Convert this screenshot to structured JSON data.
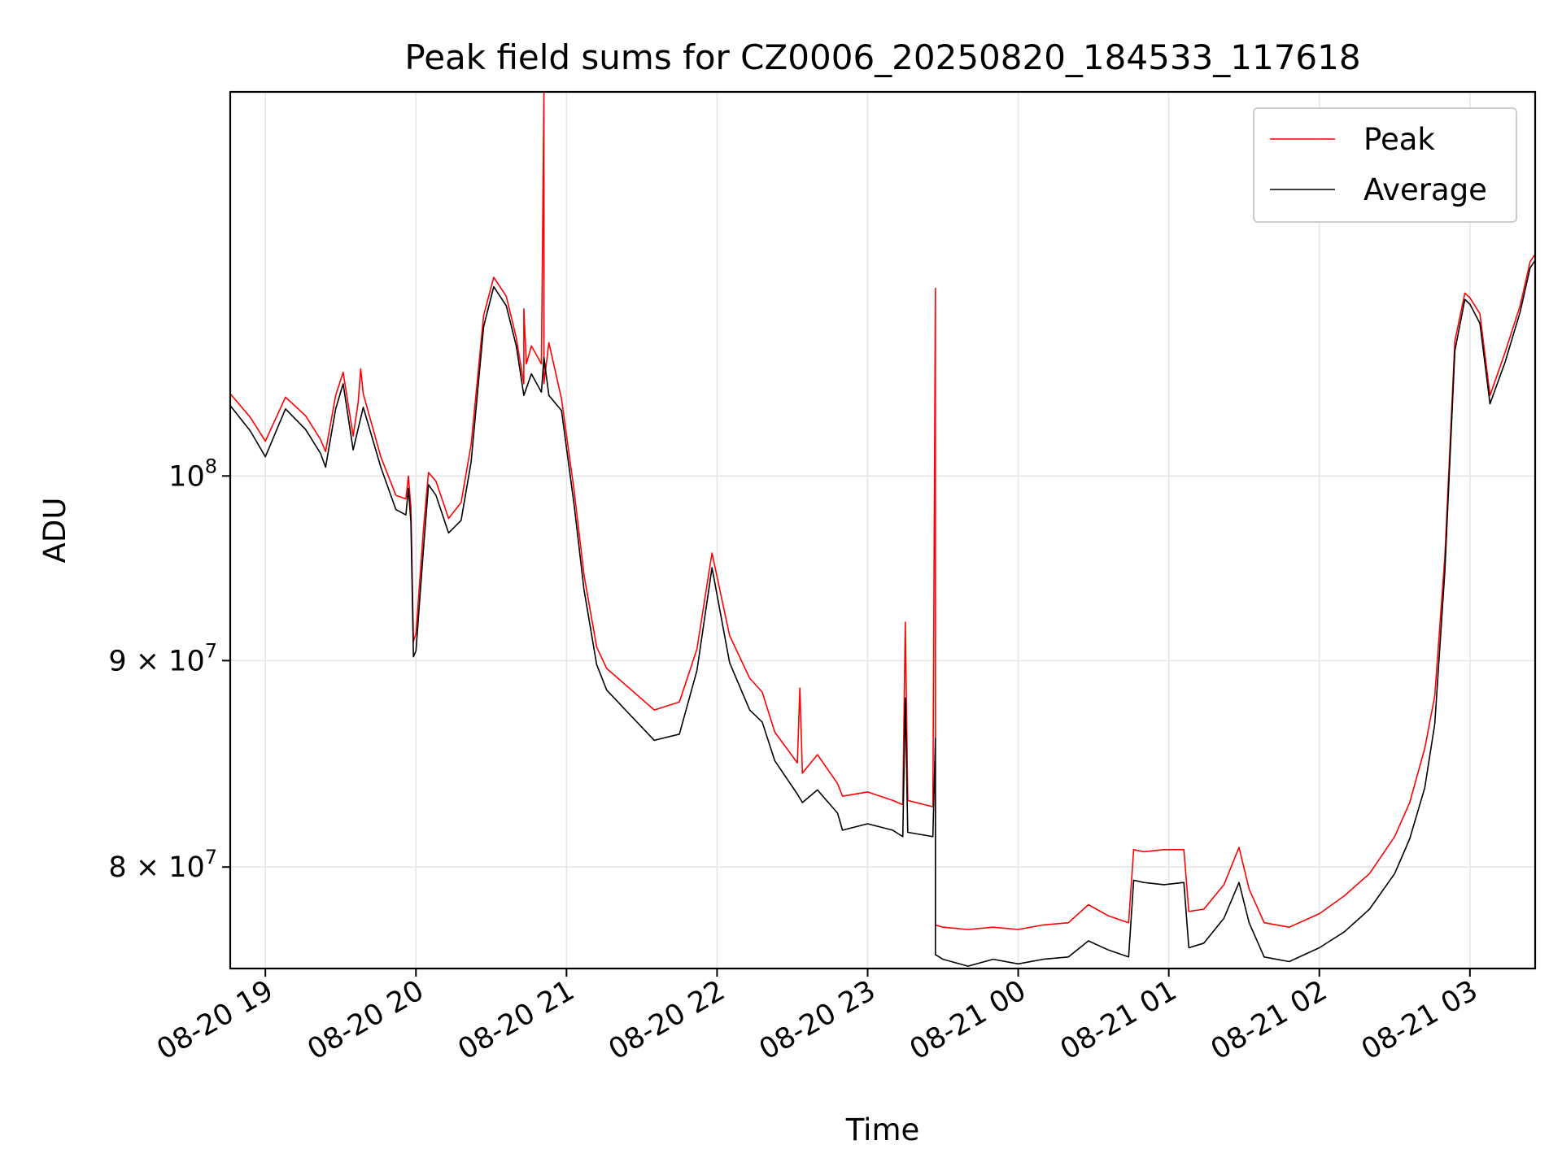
{
  "chart_data": {
    "type": "line",
    "title": "Peak field sums for CZ0006_20250820_184533_117618",
    "xlabel": "Time",
    "ylabel": "ADU",
    "y_scale": "log",
    "xlim": [
      "2025-08-20 18:46",
      "2025-08-21 03:26"
    ],
    "ylim": [
      75500000,
      124500000
    ],
    "grid": true,
    "legend_position": "top-right",
    "x_ticks": [
      {
        "value": "2025-08-20 19:00",
        "label": "08-20 19"
      },
      {
        "value": "2025-08-20 20:00",
        "label": "08-20 20"
      },
      {
        "value": "2025-08-20 21:00",
        "label": "08-20 21"
      },
      {
        "value": "2025-08-20 22:00",
        "label": "08-20 22"
      },
      {
        "value": "2025-08-20 23:00",
        "label": "08-20 23"
      },
      {
        "value": "2025-08-21 00:00",
        "label": "08-21 00"
      },
      {
        "value": "2025-08-21 01:00",
        "label": "08-21 01"
      },
      {
        "value": "2025-08-21 02:00",
        "label": "08-21 02"
      },
      {
        "value": "2025-08-21 03:00",
        "label": "08-21 03"
      }
    ],
    "y_ticks": [
      {
        "value": 80000000,
        "mantissa": "8 × 10",
        "exp": "7"
      },
      {
        "value": 90000000,
        "mantissa": "9 × 10",
        "exp": "7"
      },
      {
        "value": 100000000,
        "mantissa": "10",
        "exp": "8"
      }
    ],
    "series": [
      {
        "name": "Peak",
        "color": "#ff0000",
        "x": [
          "2025-08-20 18:46",
          "2025-08-20 18:54",
          "2025-08-20 19:00",
          "2025-08-20 19:08",
          "2025-08-20 19:16",
          "2025-08-20 19:22",
          "2025-08-20 19:24",
          "2025-08-20 19:28",
          "2025-08-20 19:31",
          "2025-08-20 19:35",
          "2025-08-20 19:37",
          "2025-08-20 19:38",
          "2025-08-20 19:39",
          "2025-08-20 19:46",
          "2025-08-20 19:52",
          "2025-08-20 19:56",
          "2025-08-20 19:57",
          "2025-08-20 19:58",
          "2025-08-20 19:59",
          "2025-08-20 20:00",
          "2025-08-20 20:03",
          "2025-08-20 20:05",
          "2025-08-20 20:08",
          "2025-08-20 20:13",
          "2025-08-20 20:18",
          "2025-08-20 20:22",
          "2025-08-20 20:27",
          "2025-08-20 20:31",
          "2025-08-20 20:36",
          "2025-08-20 20:40",
          "2025-08-20 20:43",
          "2025-08-20 20:43",
          "2025-08-20 20:44",
          "2025-08-20 20:46",
          "2025-08-20 20:50",
          "2025-08-20 20:51",
          "2025-08-20 20:51",
          "2025-08-20 20:53",
          "2025-08-20 20:58",
          "2025-08-20 21:03",
          "2025-08-20 21:07",
          "2025-08-20 21:12",
          "2025-08-20 21:16",
          "2025-08-20 21:25",
          "2025-08-20 21:35",
          "2025-08-20 21:45",
          "2025-08-20 21:52",
          "2025-08-20 21:58",
          "2025-08-20 22:05",
          "2025-08-20 22:13",
          "2025-08-20 22:18",
          "2025-08-20 22:23",
          "2025-08-20 22:32",
          "2025-08-20 22:33",
          "2025-08-20 22:34",
          "2025-08-20 22:40",
          "2025-08-20 22:48",
          "2025-08-20 22:50",
          "2025-08-20 23:00",
          "2025-08-20 23:10",
          "2025-08-20 23:14",
          "2025-08-20 23:15",
          "2025-08-20 23:16",
          "2025-08-20 23:26",
          "2025-08-20 23:27",
          "2025-08-20 23:27",
          "2025-08-20 23:30",
          "2025-08-20 23:40",
          "2025-08-20 23:50",
          "2025-08-21 00:00",
          "2025-08-21 00:10",
          "2025-08-21 00:20",
          "2025-08-21 00:28",
          "2025-08-21 00:36",
          "2025-08-21 00:44",
          "2025-08-21 00:46",
          "2025-08-21 00:50",
          "2025-08-21 00:58",
          "2025-08-21 01:06",
          "2025-08-21 01:08",
          "2025-08-21 01:14",
          "2025-08-21 01:22",
          "2025-08-21 01:28",
          "2025-08-21 01:32",
          "2025-08-21 01:38",
          "2025-08-21 01:48",
          "2025-08-21 02:00",
          "2025-08-21 02:10",
          "2025-08-21 02:20",
          "2025-08-21 02:30",
          "2025-08-21 02:36",
          "2025-08-21 02:42",
          "2025-08-21 02:46",
          "2025-08-21 02:50",
          "2025-08-21 02:54",
          "2025-08-21 02:58",
          "2025-08-21 03:00",
          "2025-08-21 03:04",
          "2025-08-21 03:08",
          "2025-08-21 03:14",
          "2025-08-21 03:20",
          "2025-08-21 03:24",
          "2025-08-21 03:26"
        ],
        "y": [
          104800000,
          103400000,
          102000000,
          104600000,
          103500000,
          102100000,
          101400000,
          104700000,
          106100000,
          102300000,
          104300000,
          106300000,
          104800000,
          101100000,
          98900000,
          98700000,
          100000000,
          98200000,
          91000000,
          91400000,
          97000000,
          100200000,
          99700000,
          97600000,
          98500000,
          101800000,
          109600000,
          112000000,
          110800000,
          108200000,
          105400000,
          110000000,
          106600000,
          107700000,
          106600000,
          124500000,
          105400000,
          107900000,
          104500000,
          99200000,
          94500000,
          90700000,
          89600000,
          88600000,
          87500000,
          87900000,
          90600000,
          95700000,
          91300000,
          89100000,
          88400000,
          86400000,
          84900000,
          88600000,
          84400000,
          85300000,
          83900000,
          83300000,
          83500000,
          83100000,
          82900000,
          92000000,
          83100000,
          82800000,
          111300000,
          77400000,
          77300000,
          77200000,
          77300000,
          77200000,
          77400000,
          77500000,
          78300000,
          77800000,
          77500000,
          80800000,
          80700000,
          80800000,
          80800000,
          78000000,
          78100000,
          79200000,
          80900000,
          79000000,
          77500000,
          77300000,
          77900000,
          78700000,
          79700000,
          81400000,
          83000000,
          85600000,
          88200000,
          95500000,
          108000000,
          111000000,
          110700000,
          109700000,
          104700000,
          107300000,
          110200000,
          113000000,
          113500000
        ]
      },
      {
        "name": "Average",
        "color": "#000000",
        "x": [
          "2025-08-20 18:46",
          "2025-08-20 18:54",
          "2025-08-20 19:00",
          "2025-08-20 19:08",
          "2025-08-20 19:16",
          "2025-08-20 19:22",
          "2025-08-20 19:24",
          "2025-08-20 19:28",
          "2025-08-20 19:31",
          "2025-08-20 19:35",
          "2025-08-20 19:39",
          "2025-08-20 19:46",
          "2025-08-20 19:52",
          "2025-08-20 19:56",
          "2025-08-20 19:57",
          "2025-08-20 19:58",
          "2025-08-20 19:59",
          "2025-08-20 20:00",
          "2025-08-20 20:03",
          "2025-08-20 20:05",
          "2025-08-20 20:08",
          "2025-08-20 20:13",
          "2025-08-20 20:18",
          "2025-08-20 20:22",
          "2025-08-20 20:27",
          "2025-08-20 20:31",
          "2025-08-20 20:36",
          "2025-08-20 20:40",
          "2025-08-20 20:43",
          "2025-08-20 20:46",
          "2025-08-20 20:50",
          "2025-08-20 20:51",
          "2025-08-20 20:53",
          "2025-08-20 20:58",
          "2025-08-20 21:03",
          "2025-08-20 21:07",
          "2025-08-20 21:12",
          "2025-08-20 21:16",
          "2025-08-20 21:25",
          "2025-08-20 21:35",
          "2025-08-20 21:45",
          "2025-08-20 21:52",
          "2025-08-20 21:58",
          "2025-08-20 22:05",
          "2025-08-20 22:13",
          "2025-08-20 22:18",
          "2025-08-20 22:23",
          "2025-08-20 22:32",
          "2025-08-20 22:34",
          "2025-08-20 22:40",
          "2025-08-20 22:48",
          "2025-08-20 22:50",
          "2025-08-20 23:00",
          "2025-08-20 23:10",
          "2025-08-20 23:14",
          "2025-08-20 23:15",
          "2025-08-20 23:16",
          "2025-08-20 23:26",
          "2025-08-20 23:27",
          "2025-08-20 23:27",
          "2025-08-20 23:30",
          "2025-08-20 23:40",
          "2025-08-20 23:50",
          "2025-08-21 00:00",
          "2025-08-21 00:10",
          "2025-08-21 00:20",
          "2025-08-21 00:28",
          "2025-08-21 00:36",
          "2025-08-21 00:44",
          "2025-08-21 00:46",
          "2025-08-21 00:50",
          "2025-08-21 00:58",
          "2025-08-21 01:06",
          "2025-08-21 01:08",
          "2025-08-21 01:14",
          "2025-08-21 01:22",
          "2025-08-21 01:28",
          "2025-08-21 01:32",
          "2025-08-21 01:38",
          "2025-08-21 01:48",
          "2025-08-21 02:00",
          "2025-08-21 02:10",
          "2025-08-21 02:20",
          "2025-08-21 02:30",
          "2025-08-21 02:36",
          "2025-08-21 02:42",
          "2025-08-21 02:46",
          "2025-08-21 02:50",
          "2025-08-21 02:54",
          "2025-08-21 02:58",
          "2025-08-21 03:00",
          "2025-08-21 03:04",
          "2025-08-21 03:08",
          "2025-08-21 03:14",
          "2025-08-21 03:20",
          "2025-08-21 03:24",
          "2025-08-21 03:26"
        ],
        "y": [
          104100000,
          102600000,
          101100000,
          103900000,
          102700000,
          101300000,
          100500000,
          103900000,
          105400000,
          101500000,
          104000000,
          100500000,
          98100000,
          97800000,
          99300000,
          97400000,
          90200000,
          90500000,
          95900000,
          99500000,
          98900000,
          96800000,
          97500000,
          100800000,
          108900000,
          111400000,
          110200000,
          107700000,
          104700000,
          106000000,
          104900000,
          107000000,
          104700000,
          103800000,
          98400000,
          93700000,
          89800000,
          88500000,
          87300000,
          86000000,
          86300000,
          89500000,
          94900000,
          89900000,
          87500000,
          86900000,
          85000000,
          83400000,
          83000000,
          83600000,
          82500000,
          81700000,
          82000000,
          81700000,
          81400000,
          88100000,
          81600000,
          81400000,
          86100000,
          76100000,
          75900000,
          75600000,
          75900000,
          75700000,
          75900000,
          76000000,
          76700000,
          76300000,
          76000000,
          79400000,
          79300000,
          79200000,
          79300000,
          76400000,
          76600000,
          77700000,
          79300000,
          77500000,
          76000000,
          75800000,
          76400000,
          77100000,
          78100000,
          79700000,
          81300000,
          83700000,
          86800000,
          94700000,
          107400000,
          110600000,
          110300000,
          109100000,
          104200000,
          106700000,
          109800000,
          112600000,
          113100000
        ]
      }
    ]
  }
}
